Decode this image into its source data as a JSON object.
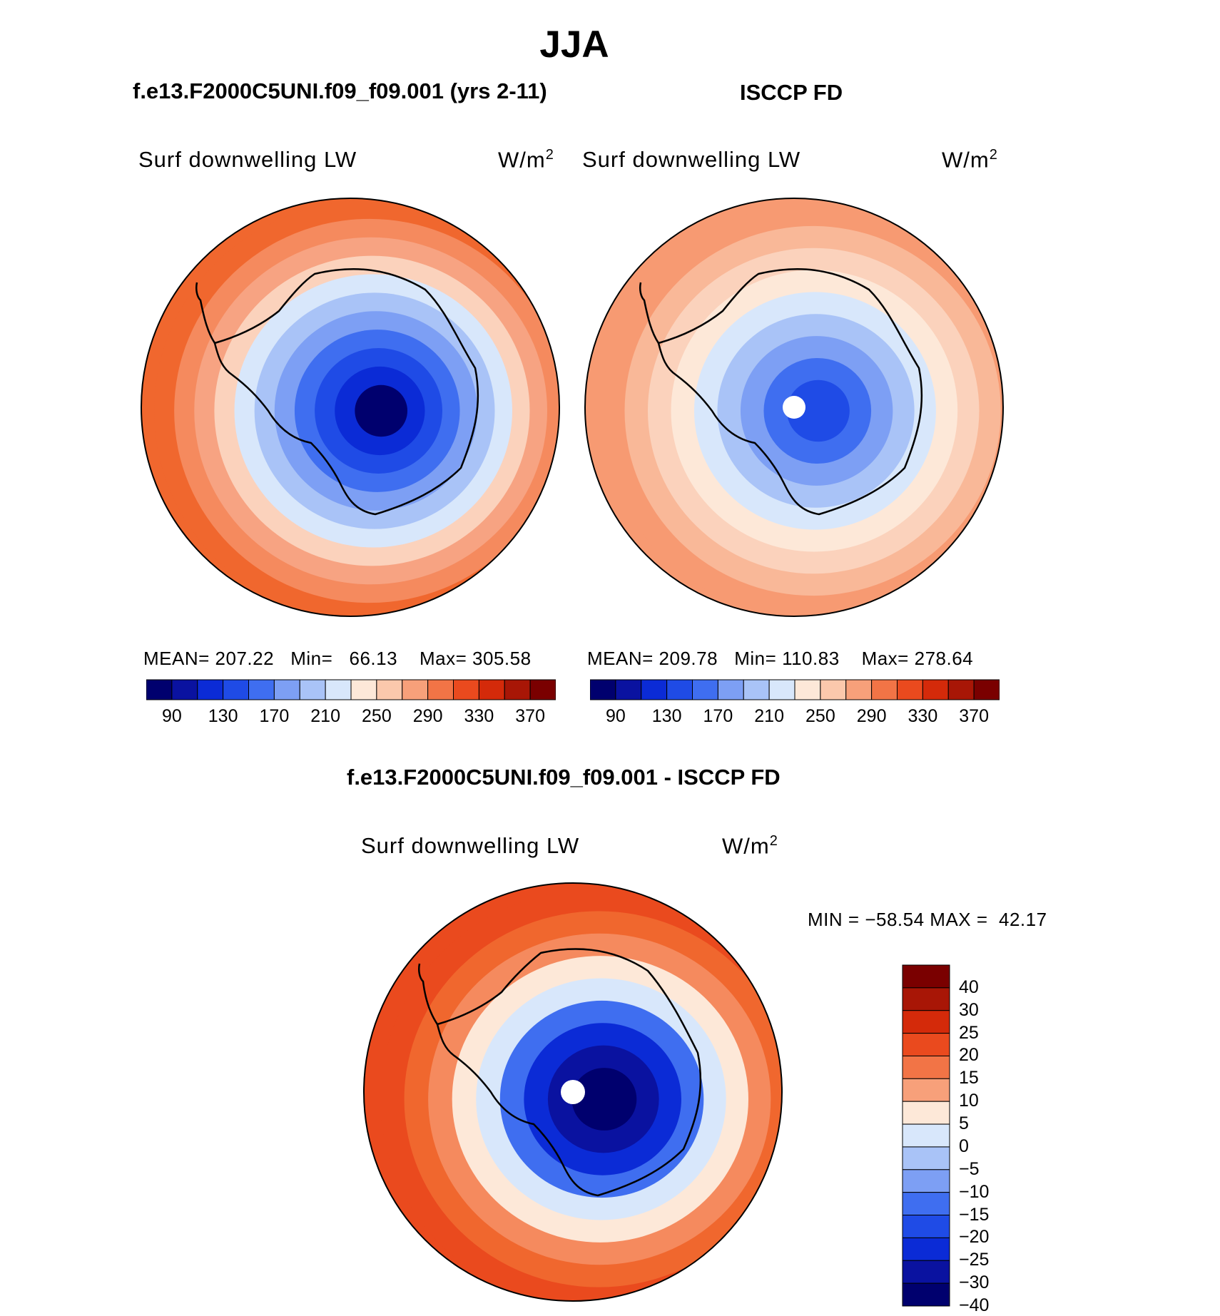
{
  "figure": {
    "season_title": "JJA"
  },
  "panels": {
    "model": {
      "title": "f.e13.F2000C5UNI.f09_f09.001 (yrs 2-11)",
      "variable": "Surf downwelling LW",
      "units": "W/m",
      "units_sup": "2",
      "mean_label": "MEAN=",
      "mean": "207.22",
      "min_label": "Min=",
      "min": "66.13",
      "max_label": "Max=",
      "max": "305.58"
    },
    "obs": {
      "title": "ISCCP FD",
      "variable": "Surf downwelling LW",
      "units": "W/m",
      "units_sup": "2",
      "mean_label": "MEAN=",
      "mean": "209.78",
      "min_label": "Min=",
      "min": "110.83",
      "max_label": "Max=",
      "max": "278.64"
    },
    "diff": {
      "title": "f.e13.F2000C5UNI.f09_f09.001 - ISCCP FD",
      "variable": "Surf downwelling LW",
      "units": "W/m",
      "units_sup": "2",
      "min_label": "MIN =",
      "min": "−58.54",
      "max_label": "MAX =",
      "max": "42.17"
    }
  },
  "colorbar_abs": {
    "colors": [
      "#00006e",
      "#0a12a0",
      "#0b2bd6",
      "#1f4be6",
      "#3f6ef0",
      "#7d9ff4",
      "#a9c3f7",
      "#d8e7fb",
      "#fde8d8",
      "#fbc8ac",
      "#f7a07a",
      "#f27446",
      "#ea4a1e",
      "#d42a0a",
      "#a81606",
      "#7a0000"
    ],
    "tick_labels": [
      "90",
      "130",
      "170",
      "210",
      "250",
      "290",
      "330",
      "370"
    ]
  },
  "colorbar_diff": {
    "colors": [
      "#7a0000",
      "#a81606",
      "#d42a0a",
      "#ea4a1e",
      "#f27446",
      "#f7a07a",
      "#fde8d8",
      "#d8e7fb",
      "#a9c3f7",
      "#7d9ff4",
      "#3f6ef0",
      "#1f4be6",
      "#0b2bd6",
      "#0a12a0",
      "#00006e"
    ],
    "tick_labels": [
      "40",
      "30",
      "25",
      "20",
      "15",
      "10",
      "5",
      "0",
      "−5",
      "−10",
      "−15",
      "−20",
      "−25",
      "−30",
      "−40"
    ]
  },
  "map_rings": {
    "model": [
      "#f0672e",
      "#f58a5e",
      "#f7a382",
      "#fbd2bc",
      "#d8e7fb",
      "#a9c3f7",
      "#7d9ff4",
      "#3f6ef0",
      "#1f4be6",
      "#0b2bd6",
      "#00006e"
    ],
    "obs": [
      "#f79a72",
      "#f9b898",
      "#fbd2bc",
      "#fde8d8",
      "#d8e7fb",
      "#a9c3f7",
      "#7d9ff4",
      "#3f6ef0",
      "#1f4be6"
    ],
    "diff": [
      "#ea4a1e",
      "#f0672e",
      "#f58a5e",
      "#fde8d8",
      "#d8e7fb",
      "#3f6ef0",
      "#0b2bd6",
      "#0a12a0",
      "#00006e"
    ]
  }
}
